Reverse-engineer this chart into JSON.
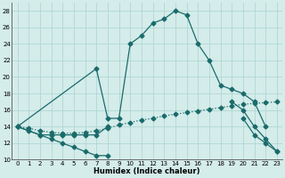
{
  "xlabel": "Humidex (Indice chaleur)",
  "bg_color": "#d4ecea",
  "grid_color": "#a8d5d0",
  "line_color": "#1a6b6b",
  "xlim": [
    -0.5,
    23.5
  ],
  "ylim": [
    10,
    29
  ],
  "xticks": [
    0,
    1,
    2,
    3,
    4,
    5,
    6,
    7,
    8,
    9,
    10,
    11,
    12,
    13,
    14,
    15,
    16,
    17,
    18,
    19,
    20,
    21,
    22,
    23
  ],
  "yticks": [
    10,
    12,
    14,
    16,
    18,
    20,
    22,
    24,
    26,
    28
  ],
  "series1_x": [
    0,
    1,
    2,
    3,
    4,
    5,
    6,
    7,
    8,
    20,
    21,
    22,
    23
  ],
  "series1_y": [
    14,
    13.5,
    13,
    12.5,
    12,
    11.5,
    11,
    10.5,
    10.5,
    15,
    13,
    12,
    11
  ],
  "series2_x": [
    0,
    2,
    3,
    4,
    5,
    6,
    7,
    8,
    19,
    20,
    21,
    22,
    23
  ],
  "series2_y": [
    14,
    13,
    13,
    13,
    13,
    13,
    13,
    14,
    17,
    16,
    14,
    12.5,
    11
  ],
  "series3_x": [
    0,
    1,
    2,
    3,
    4,
    5,
    6,
    7,
    8,
    9,
    10,
    11,
    12,
    13,
    14,
    15,
    16,
    17,
    18,
    19,
    20,
    21,
    22,
    23
  ],
  "series3_y": [
    14,
    13.8,
    13.5,
    13.3,
    13.2,
    13.2,
    13.3,
    13.5,
    13.8,
    14.2,
    14.5,
    14.8,
    15.0,
    15.3,
    15.5,
    15.7,
    15.9,
    16.1,
    16.3,
    16.5,
    16.7,
    16.8,
    16.9,
    17.0
  ],
  "series4_x": [
    0,
    7,
    8,
    9,
    10,
    11,
    12,
    13,
    14,
    15,
    16,
    17,
    18,
    19,
    20,
    21,
    22
  ],
  "series4_y": [
    14,
    21,
    15,
    15,
    24,
    25,
    26.5,
    27,
    28,
    27.5,
    24,
    22,
    19,
    18.5,
    18,
    17,
    14
  ]
}
